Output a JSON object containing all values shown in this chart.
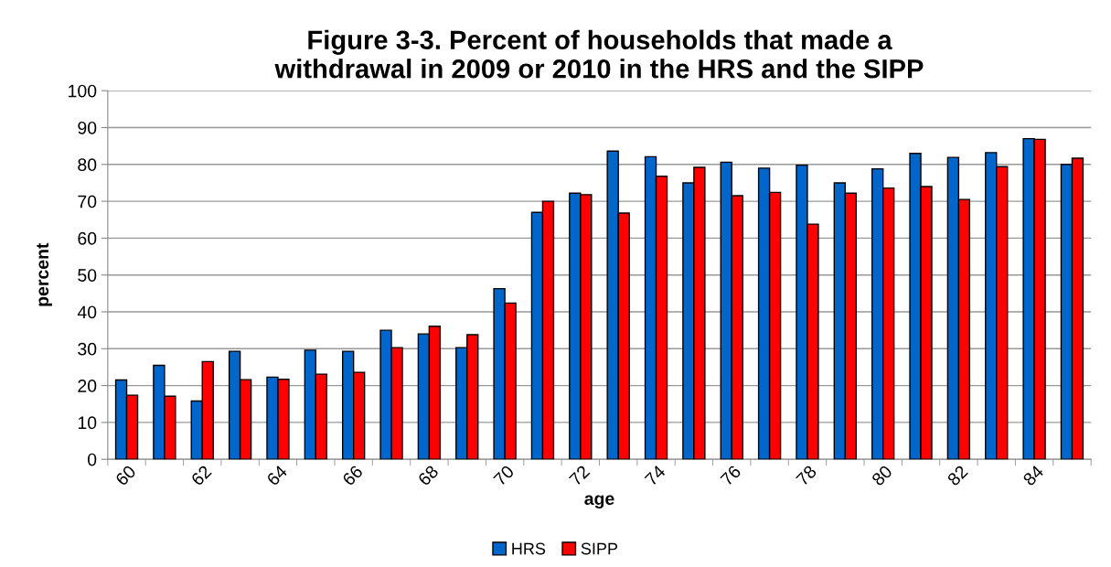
{
  "chart_data": {
    "type": "bar",
    "title": "Figure 3-3. Percent of households that made a\nwithdrawal in 2009 or 2010 in the HRS and the SIPP",
    "xlabel": "age",
    "ylabel": "percent",
    "categories": [
      "60",
      null,
      "62",
      null,
      "64",
      null,
      "66",
      null,
      "68",
      null,
      "70",
      null,
      "72",
      null,
      "74",
      null,
      "76",
      null,
      "78",
      null,
      "80",
      null,
      "82",
      null,
      "84",
      null
    ],
    "series": [
      {
        "name": "HRS",
        "color": "#0066cc",
        "values": [
          21.5,
          25.5,
          15.8,
          29.3,
          22.3,
          29.6,
          29.3,
          35,
          34,
          30.3,
          46.3,
          67,
          72.2,
          83.6,
          82.1,
          75,
          80.6,
          79,
          79.8,
          75,
          78.8,
          83,
          81.9,
          83.2,
          87,
          80
        ]
      },
      {
        "name": "SIPP",
        "color": "#ff0000",
        "values": [
          17.4,
          17.1,
          26.5,
          21.6,
          21.7,
          23.1,
          23.6,
          30.3,
          36.1,
          33.8,
          42.4,
          70,
          71.8,
          66.8,
          76.8,
          79.2,
          71.5,
          72.4,
          63.8,
          72.2,
          73.6,
          74,
          70.5,
          79.4,
          86.8,
          81.7
        ]
      }
    ],
    "ylim": [
      0,
      100
    ],
    "yticks": [
      0,
      10,
      20,
      30,
      40,
      50,
      60,
      70,
      80,
      90,
      100
    ],
    "grid": "y",
    "legend": "bottom"
  }
}
